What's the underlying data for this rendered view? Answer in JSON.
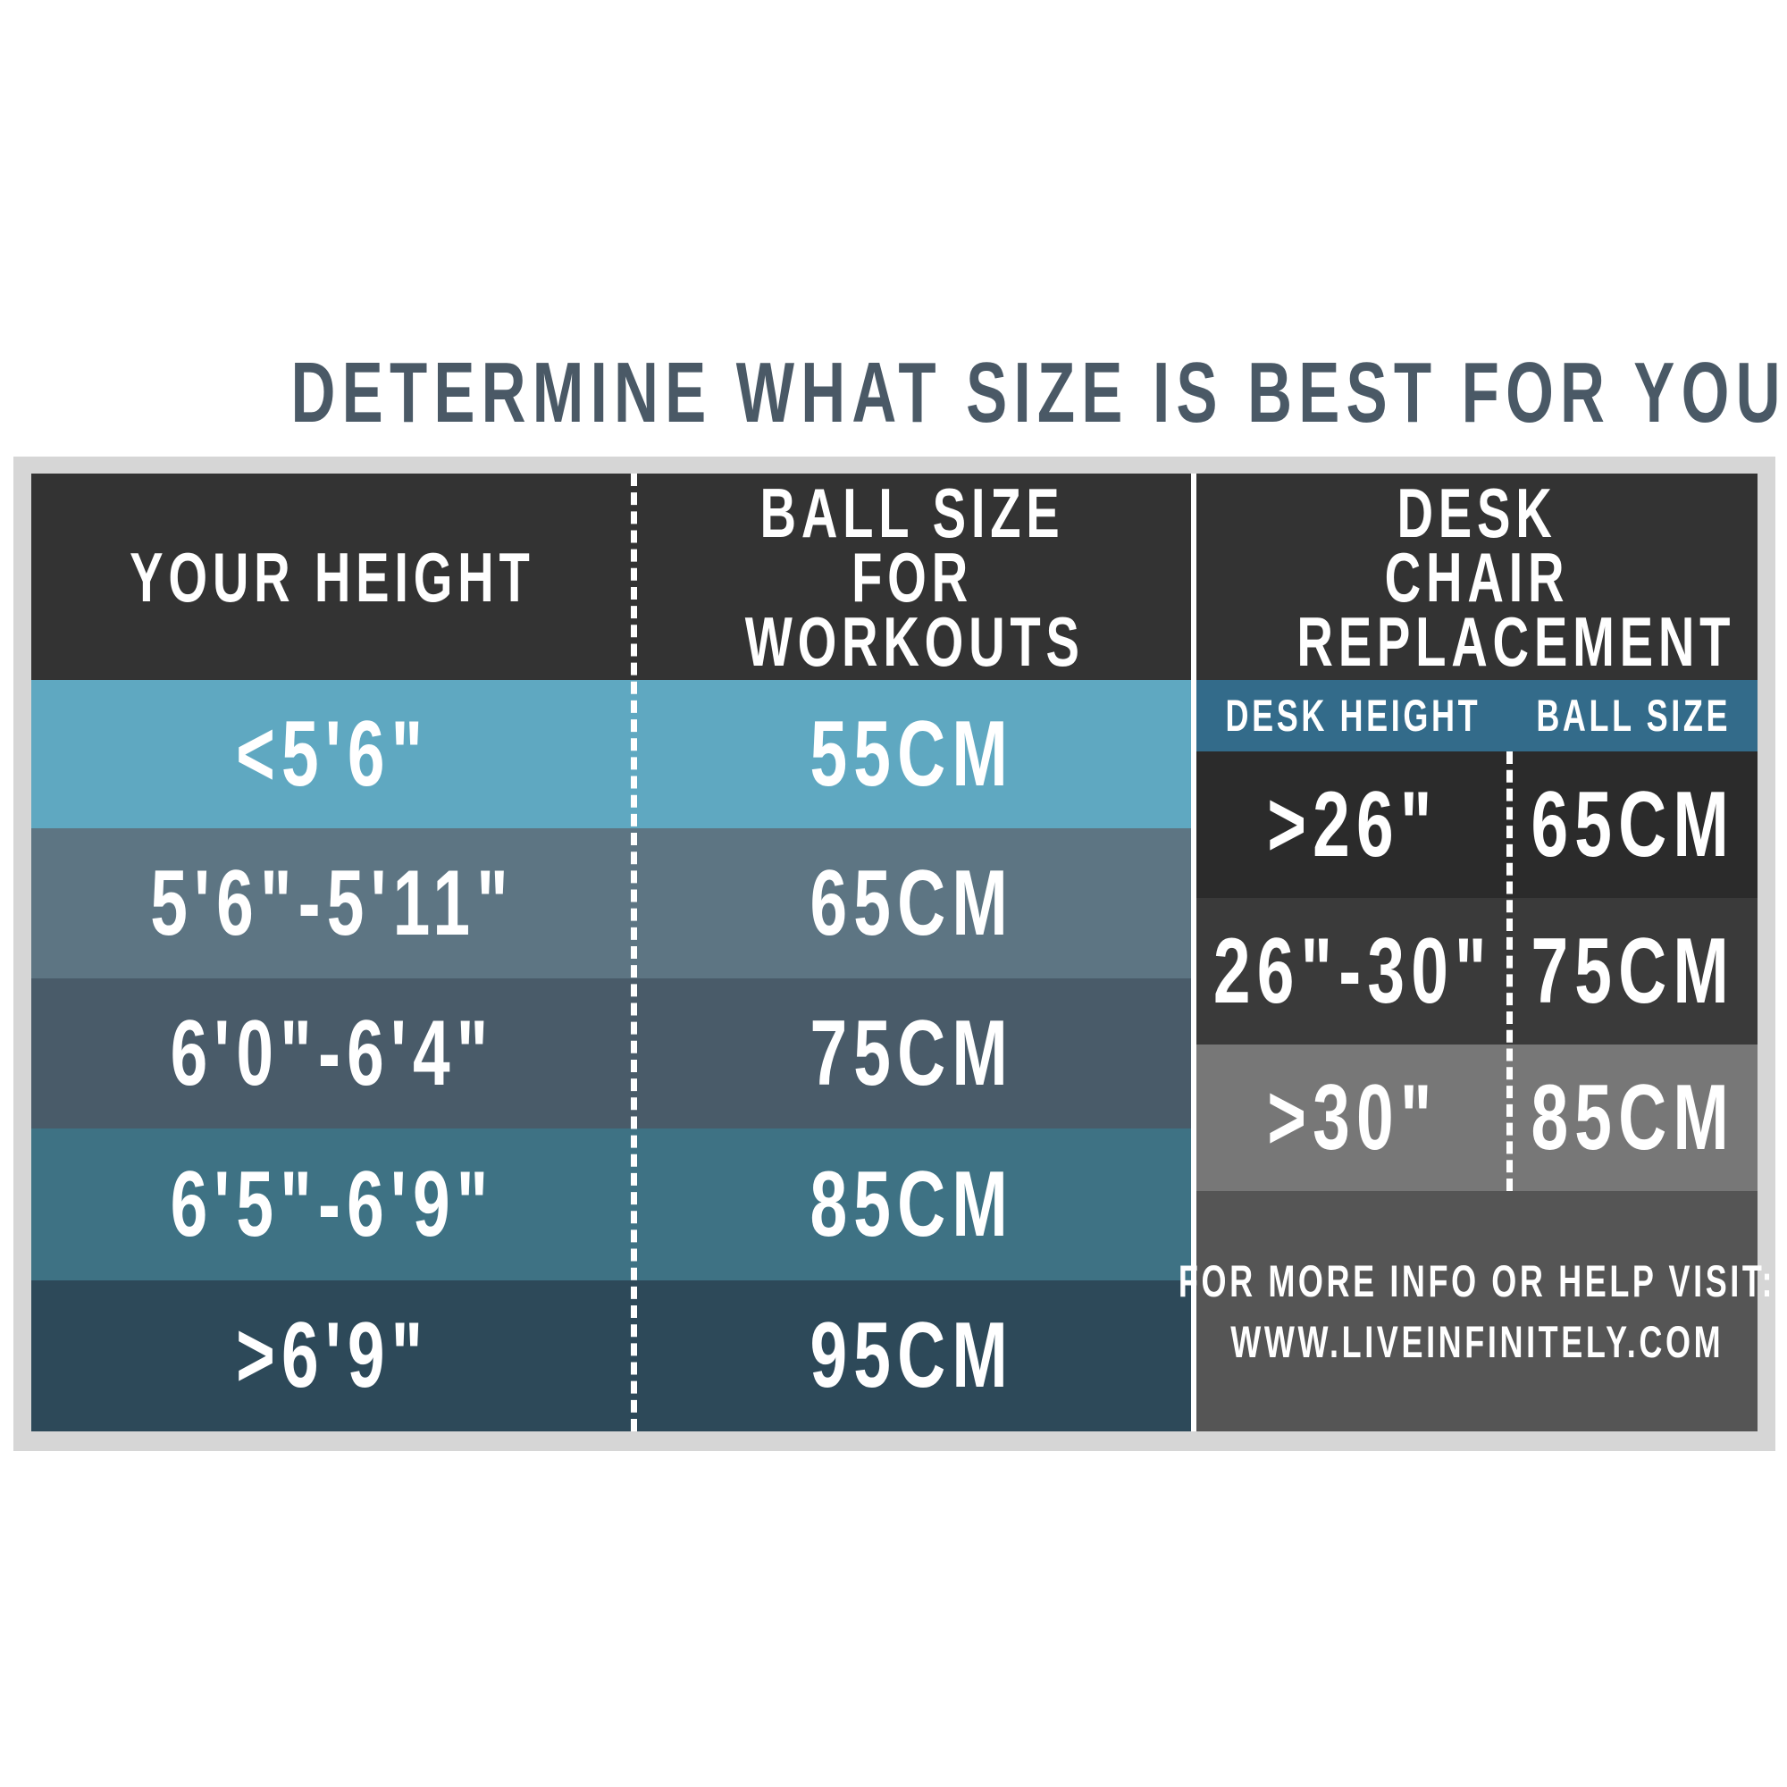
{
  "title": "DETERMINE WHAT SIZE IS BEST FOR YOU",
  "columns": {
    "height": "YOUR HEIGHT",
    "workouts": "BALL SIZE FOR WORKOUTS",
    "desk_chair": "DESK CHAIR REPLACEMENT"
  },
  "workout_rows": [
    {
      "height": "<5'6\"",
      "ball": "55CM",
      "color": "#5fa8c1"
    },
    {
      "height": "5'6\"-5'11\"",
      "ball": "65CM",
      "color": "#5d7583"
    },
    {
      "height": "6'0\"-6'4\"",
      "ball": "75CM",
      "color": "#495b69"
    },
    {
      "height": "6'5\"-6'9\"",
      "ball": "85CM",
      "color": "#3e7284"
    },
    {
      "height": ">6'9\"",
      "ball": "95CM",
      "color": "#2d4959"
    }
  ],
  "desk": {
    "subheaders": {
      "desk_height": "DESK HEIGHT",
      "ball_size": "BALL SIZE"
    },
    "rows": [
      {
        "desk_height": ">26\"",
        "ball": "65CM",
        "color": "#2b2b2b"
      },
      {
        "desk_height": "26\"-30\"",
        "ball": "75CM",
        "color": "#3a3a3a"
      },
      {
        "desk_height": ">30\"",
        "ball": "85CM",
        "color": "#777777"
      }
    ],
    "footer_line1": "FOR MORE INFO OR HELP VISIT:",
    "footer_line2": "WWW.LIVEINFINITELY.COM"
  },
  "colors": {
    "header": "#333333",
    "subheader": "#336b8a",
    "footer": "#555555",
    "title": "#4a5966"
  }
}
